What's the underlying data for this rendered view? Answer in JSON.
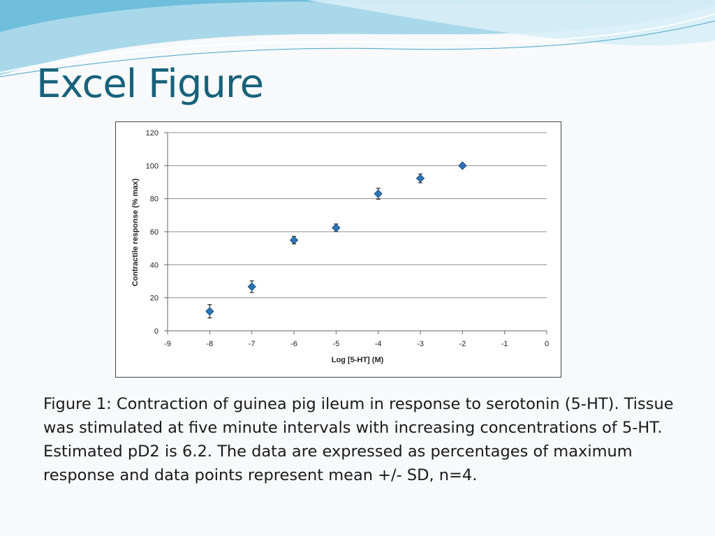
{
  "title": "Excel Figure",
  "caption": "Figure 1: Contraction of guinea pig ileum in response to serotonin (5-HT). Tissue was stimulated at five minute intervals with increasing concentrations of 5-HT. Estimated pD2 is 6.2. The data are expressed as percentages of maximum response and data points represent mean +/- SD, n=4.",
  "colors": {
    "title": "#17627a",
    "marker": "#2e75b6",
    "marker_edge": "#1f4e79",
    "grid": "#8c8c8c",
    "wave_light": "#a9d8ea",
    "wave_dark": "#5fb4d4"
  },
  "chart_data": {
    "type": "scatter",
    "title": "",
    "xlabel": "Log [5-HT] (M)",
    "ylabel": "Contractile response (% max)",
    "xlim": [
      -9,
      0
    ],
    "ylim": [
      0,
      120
    ],
    "xticks": [
      -9,
      -8,
      -7,
      -6,
      -5,
      -4,
      -3,
      -2,
      -1,
      0
    ],
    "yticks": [
      0,
      20,
      40,
      60,
      80,
      100,
      120
    ],
    "grid": "horizontal",
    "legend": "none",
    "points": [
      {
        "x": -8,
        "y": 11.8,
        "sd": 4.0
      },
      {
        "x": -7,
        "y": 26.7,
        "sd": 3.5
      },
      {
        "x": -6,
        "y": 54.9,
        "sd": 2.3
      },
      {
        "x": -5,
        "y": 62.4,
        "sd": 2.3
      },
      {
        "x": -4,
        "y": 83.0,
        "sd": 3.3
      },
      {
        "x": -3,
        "y": 92.3,
        "sd": 2.7
      },
      {
        "x": -2,
        "y": 100.0,
        "sd": 0
      }
    ]
  }
}
